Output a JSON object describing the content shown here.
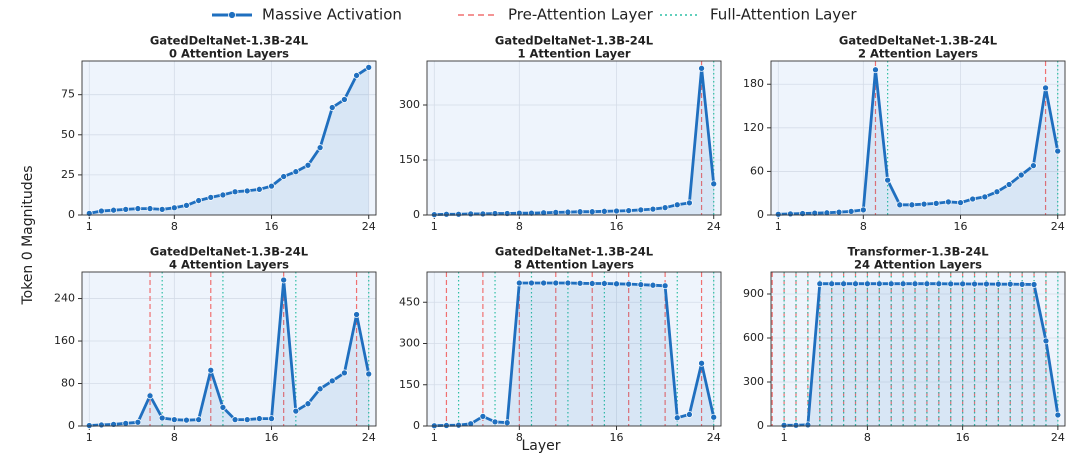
{
  "legend": [
    {
      "name": "Massive Activation",
      "color": "#1f6fbf"
    },
    {
      "name": "Pre-Attention Layer",
      "color": "#f07070"
    },
    {
      "name": "Full-Attention Layer",
      "color": "#2fbfa5"
    }
  ],
  "xlabel": "Layer",
  "ylabel": "Token 0 Magnitudes",
  "chart_data": [
    {
      "type": "line",
      "title": "GatedDeltaNet-1.3B-24L",
      "subtitle": "0 Attention Layers",
      "x": [
        1,
        2,
        3,
        4,
        5,
        6,
        7,
        8,
        9,
        10,
        11,
        12,
        13,
        14,
        15,
        16,
        17,
        18,
        19,
        20,
        21,
        22,
        23,
        24
      ],
      "values": [
        1,
        2.5,
        3,
        3.5,
        4,
        4,
        3.5,
        4.5,
        6,
        9,
        11,
        12.5,
        14.5,
        15,
        16,
        18,
        24,
        27,
        31,
        42,
        67,
        72,
        87,
        92
      ],
      "pre_attention_layers": [],
      "full_attention_layers": [],
      "xlim": [
        0.4,
        24.6
      ],
      "xticks": [
        1,
        8,
        16,
        24
      ],
      "ylim": [
        0,
        96
      ],
      "yticks": [
        0,
        25,
        50,
        75
      ],
      "grid": true
    },
    {
      "type": "line",
      "title": "GatedDeltaNet-1.3B-24L",
      "subtitle": "1 Attention Layer",
      "x": [
        1,
        2,
        3,
        4,
        5,
        6,
        7,
        8,
        9,
        10,
        11,
        12,
        13,
        14,
        15,
        16,
        17,
        18,
        19,
        20,
        21,
        22,
        23,
        24
      ],
      "values": [
        1,
        2,
        2,
        3,
        3,
        4,
        4,
        5,
        5,
        6,
        7,
        8,
        9,
        9,
        10,
        11,
        12,
        14,
        16,
        20,
        28,
        33,
        400,
        85
      ],
      "pre_attention_layers": [
        23
      ],
      "full_attention_layers": [
        24
      ],
      "xlim": [
        0.4,
        24.6
      ],
      "xticks": [
        1,
        8,
        16,
        24
      ],
      "ylim": [
        0,
        420
      ],
      "yticks": [
        0,
        150,
        300
      ],
      "grid": true
    },
    {
      "type": "line",
      "title": "GatedDeltaNet-1.3B-24L",
      "subtitle": "2 Attention Layers",
      "x": [
        1,
        2,
        3,
        4,
        5,
        6,
        7,
        8,
        9,
        10,
        11,
        12,
        13,
        14,
        15,
        16,
        17,
        18,
        19,
        20,
        21,
        22,
        23,
        24
      ],
      "values": [
        1,
        1.5,
        2,
        2.5,
        3,
        4,
        5,
        7,
        200,
        48,
        14,
        14,
        15,
        16,
        18,
        17,
        22,
        25,
        32,
        42,
        55,
        68,
        175,
        88
      ],
      "pre_attention_layers": [
        9,
        23
      ],
      "full_attention_layers": [
        10,
        24
      ],
      "xlim": [
        0.4,
        24.6
      ],
      "xticks": [
        1,
        8,
        16,
        24
      ],
      "ylim": [
        0,
        212
      ],
      "yticks": [
        0,
        60,
        120,
        180
      ],
      "grid": true
    },
    {
      "type": "line",
      "title": "GatedDeltaNet-1.3B-24L",
      "subtitle": "4 Attention Layers",
      "x": [
        1,
        2,
        3,
        4,
        5,
        6,
        7,
        8,
        9,
        10,
        11,
        12,
        13,
        14,
        15,
        16,
        17,
        18,
        19,
        20,
        21,
        22,
        23,
        24
      ],
      "values": [
        1,
        2,
        3,
        5,
        7,
        57,
        15,
        12,
        11,
        12,
        105,
        35,
        12,
        12,
        14,
        14,
        275,
        28,
        42,
        70,
        85,
        100,
        210,
        98
      ],
      "pre_attention_layers": [
        6,
        11,
        17,
        23
      ],
      "full_attention_layers": [
        7,
        12,
        18,
        24
      ],
      "xlim": [
        0.4,
        24.6
      ],
      "xticks": [
        1,
        8,
        16,
        24
      ],
      "ylim": [
        0,
        290
      ],
      "yticks": [
        0,
        80,
        160,
        240
      ],
      "grid": true
    },
    {
      "type": "line",
      "title": "GatedDeltaNet-1.3B-24L",
      "subtitle": "8 Attention Layers",
      "x": [
        1,
        2,
        3,
        4,
        5,
        6,
        7,
        8,
        9,
        10,
        11,
        12,
        13,
        14,
        15,
        16,
        17,
        18,
        19,
        20,
        21,
        22,
        23,
        24
      ],
      "values": [
        1,
        2,
        3,
        8,
        35,
        15,
        12,
        520,
        520,
        520,
        520,
        520,
        519,
        518,
        518,
        517,
        516,
        514,
        512,
        510,
        30,
        42,
        228,
        32
      ],
      "pre_attention_layers": [
        2,
        5,
        8,
        11,
        14,
        17,
        20,
        23
      ],
      "full_attention_layers": [
        3,
        6,
        9,
        12,
        15,
        18,
        21,
        24
      ],
      "xlim": [
        0.4,
        24.6
      ],
      "xticks": [
        1,
        8,
        16,
        24
      ],
      "ylim": [
        0,
        560
      ],
      "yticks": [
        0,
        150,
        300,
        450
      ],
      "grid": true
    },
    {
      "type": "line",
      "title": "Transformer-1.3B-24L",
      "subtitle": "24 Attention Layers",
      "x": [
        1,
        2,
        3,
        4,
        5,
        6,
        7,
        8,
        9,
        10,
        11,
        12,
        13,
        14,
        15,
        16,
        17,
        18,
        19,
        20,
        21,
        22,
        23,
        24
      ],
      "values": [
        5,
        5,
        8,
        970,
        970,
        970,
        970,
        970,
        970,
        970,
        970,
        970,
        970,
        970,
        969,
        969,
        968,
        968,
        967,
        967,
        966,
        965,
        580,
        75
      ],
      "pre_attention_layers": [
        0,
        1,
        2,
        3,
        4,
        5,
        6,
        7,
        8,
        9,
        10,
        11,
        12,
        13,
        14,
        15,
        16,
        17,
        18,
        19,
        20,
        21,
        22,
        23
      ],
      "full_attention_layers": [
        1,
        2,
        3,
        4,
        5,
        6,
        7,
        8,
        9,
        10,
        11,
        12,
        13,
        14,
        15,
        16,
        17,
        18,
        19,
        20,
        21,
        22,
        23,
        24
      ],
      "xlim": [
        -0.1,
        24.6
      ],
      "xticks": [
        1,
        8,
        16,
        24
      ],
      "ylim": [
        0,
        1050
      ],
      "yticks": [
        0,
        300,
        600,
        900
      ],
      "grid": true
    }
  ]
}
